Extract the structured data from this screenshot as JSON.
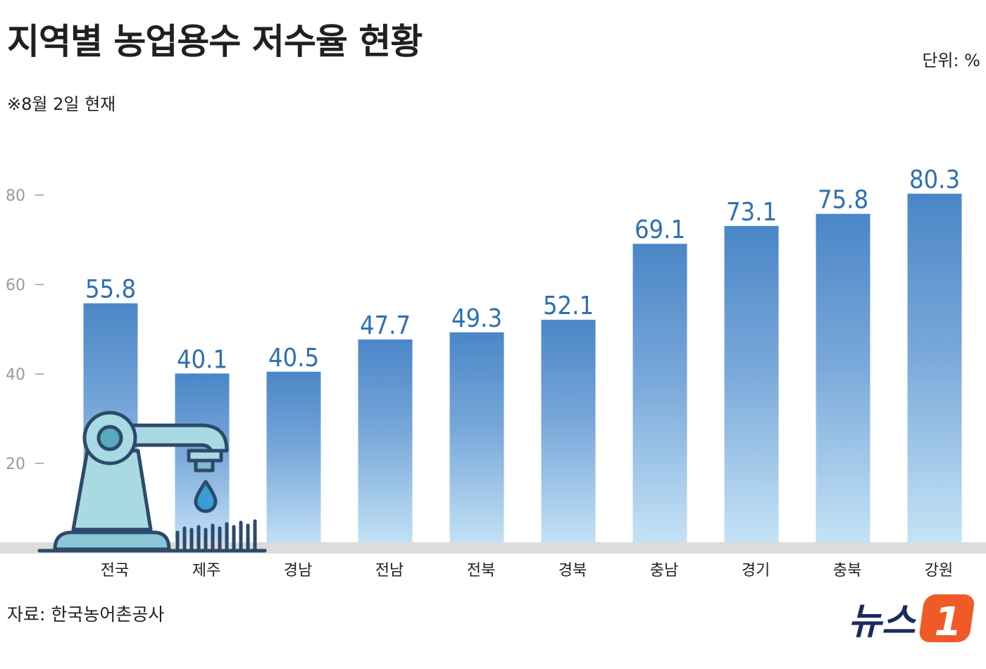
{
  "title": "지역별 농업용수 저수율 현황",
  "note": "※8월 2일 현재",
  "unit": "단위: %",
  "source": "자료: 한국농어촌공사",
  "logo": {
    "text": "뉴스",
    "mark": "1",
    "icon": "news1-logo"
  },
  "colors": {
    "bar_top": "#4a86c8",
    "bar_bottom": "#c9e6f8",
    "value_label": "#2f6fb0",
    "baseline": "#dedede",
    "logo_orange": "#f05a28",
    "logo_navy": "#1c2b5e"
  },
  "chart_data": {
    "type": "bar",
    "categories": [
      "전국",
      "제주",
      "경남",
      "전남",
      "전북",
      "경북",
      "충남",
      "경기",
      "충북",
      "강원"
    ],
    "values": [
      55.8,
      40.1,
      40.5,
      47.7,
      49.3,
      52.1,
      69.1,
      73.1,
      75.8,
      80.3
    ],
    "value_labels": [
      "55.8",
      "40.1",
      "40.5",
      "47.7",
      "49.3",
      "52.1",
      "69.1",
      "73.1",
      "75.8",
      "80.3"
    ],
    "yticks": [
      20,
      40,
      60,
      80
    ],
    "ytick_labels": [
      "20",
      "40",
      "60",
      "80"
    ],
    "ylim": [
      0,
      85
    ],
    "grid": false,
    "decoration": "faucet-illustration"
  }
}
